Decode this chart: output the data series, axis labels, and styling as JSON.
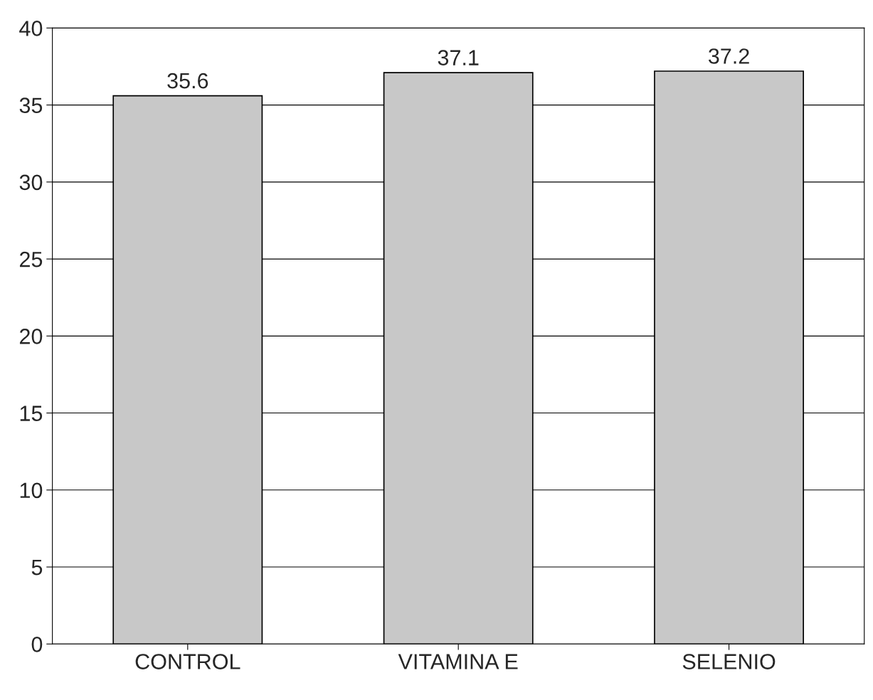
{
  "chart_data": {
    "type": "bar",
    "categories": [
      "CONTROL",
      "VITAMINA E",
      "SELENIO"
    ],
    "values": [
      35.6,
      37.1,
      37.2
    ],
    "color": "#c8c8c8",
    "ylim": [
      0,
      40
    ],
    "yticks": [
      0,
      5,
      10,
      15,
      20,
      25,
      30,
      35,
      40
    ],
    "grid": "y",
    "data_labels": true,
    "legend": false
  }
}
